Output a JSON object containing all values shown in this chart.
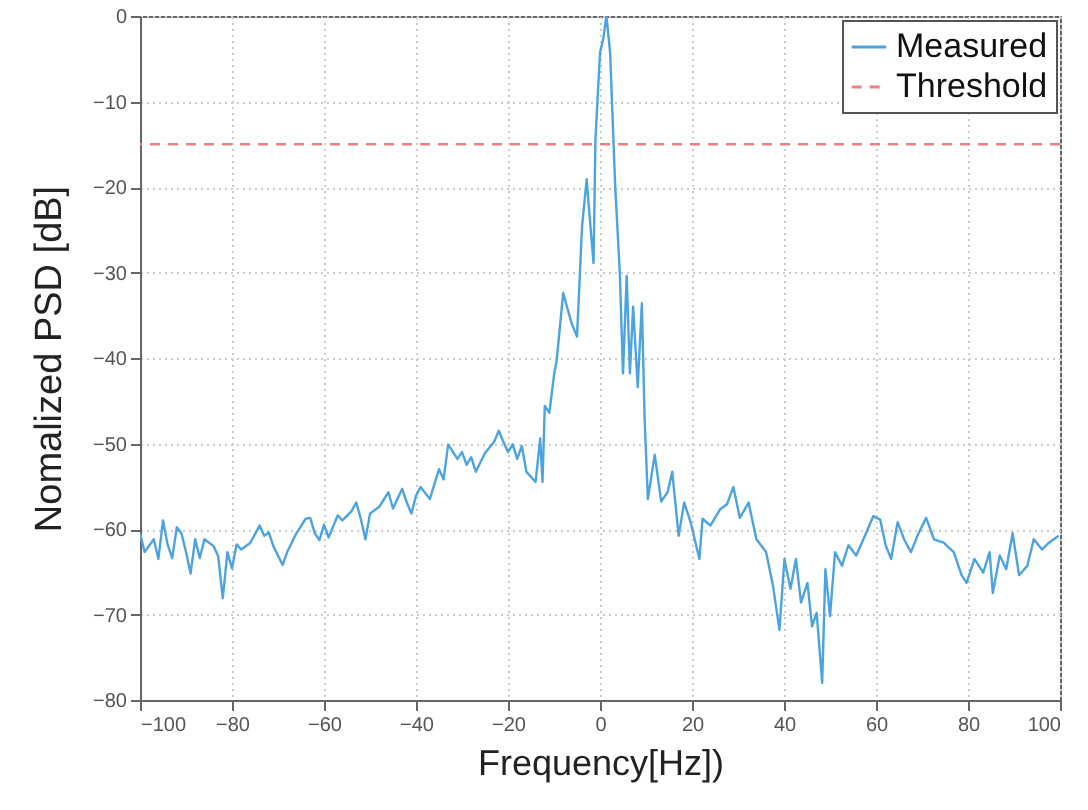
{
  "chart_data": {
    "type": "line",
    "xlabel": "Frequency[Hz])",
    "ylabel": "Nomalized PSD [dB]",
    "series": [
      {
        "name": "Measured",
        "color": "#4da3e0",
        "x": [
          -100,
          -99,
          -97,
          -96,
          -95,
          -94,
          -93,
          -92,
          -91,
          -90,
          -89,
          -88,
          -87,
          -86,
          -84,
          -83,
          -82,
          -81,
          -80,
          -79,
          -78,
          -76,
          -74,
          -73,
          -72,
          -71,
          -69,
          -68,
          -66,
          -64,
          -63,
          -62,
          -61,
          -60,
          -59,
          -57,
          -56,
          -54,
          -53,
          -52,
          -51,
          -50,
          -48,
          -46,
          -45,
          -43,
          -42,
          -41,
          -40,
          -39,
          -37,
          -35,
          -34,
          -33,
          -31,
          -30,
          -29,
          -28,
          -27,
          -25,
          -23,
          -22,
          -21,
          -20,
          -19,
          -18,
          -17,
          -16,
          -15,
          -14,
          -13,
          -12.5,
          -12,
          -11,
          -10,
          -9.4,
          -8,
          -6.2,
          -5,
          -3.9,
          -2.9,
          -2.2,
          -1.4,
          -1,
          0,
          0.7,
          1.4,
          2.2,
          3.3,
          4.3,
          5,
          5.8,
          6.5,
          7.2,
          8.2,
          9.1,
          9.7,
          10.4,
          11.9,
          13.3,
          14.7,
          15.7,
          17.1,
          18.3,
          19.7,
          21.6,
          22.3,
          24,
          26.1,
          27.6,
          29,
          30.4,
          32.3,
          34,
          36.1,
          37.6,
          39,
          40.1,
          41.4,
          42.6,
          43.7,
          45.1,
          46.1,
          47.1,
          48.3,
          49,
          50,
          51.1,
          52.6,
          54,
          55.7,
          57.6,
          59.4,
          60.9,
          62.1,
          63.3,
          64.7,
          66.1,
          67.6,
          69,
          70.9,
          72.6,
          74.7,
          76.9,
          78.6,
          79.7,
          81.4,
          83.3,
          84.7,
          85.4,
          86.9,
          88.3,
          89.7,
          91.1,
          92.9,
          94.3,
          96.1,
          97.6,
          99.7
        ],
        "values": [
          -60.5,
          -62.7,
          -61.2,
          -63.5,
          -59,
          -61.8,
          -63.4,
          -59.8,
          -60.5,
          -62.7,
          -65.2,
          -61.2,
          -63.4,
          -61.2,
          -62,
          -63.2,
          -68.1,
          -62.7,
          -64.6,
          -61.8,
          -62.4,
          -61.6,
          -59.6,
          -60.8,
          -60.4,
          -62,
          -64.2,
          -62.7,
          -60.5,
          -58.8,
          -58.7,
          -60.5,
          -61.3,
          -59.5,
          -61,
          -58.4,
          -59,
          -57.9,
          -56.9,
          -58.8,
          -61.2,
          -58.2,
          -57.4,
          -55.7,
          -57.6,
          -55.3,
          -56.9,
          -58.2,
          -56.1,
          -55.1,
          -56.5,
          -53,
          -54.2,
          -50.1,
          -51.8,
          -51,
          -52.5,
          -51.6,
          -53.3,
          -51.1,
          -49.8,
          -48.5,
          -49.8,
          -51,
          -50.1,
          -51.8,
          -50.3,
          -53.3,
          -53.9,
          -54.5,
          -49.4,
          -54.5,
          -45.6,
          -46.4,
          -42,
          -40.2,
          -32.4,
          -35.9,
          -37.5,
          -24.6,
          -19.1,
          -23.8,
          -28.9,
          -14.5,
          -4.3,
          -2.7,
          0,
          -4.3,
          -19.9,
          -30,
          -41.8,
          -30.4,
          -41.8,
          -34,
          -43.4,
          -33.6,
          -47.1,
          -56.5,
          -51.3,
          -56.8,
          -55.7,
          -53.3,
          -60.8,
          -56.9,
          -59.2,
          -63.5,
          -58.8,
          -59.6,
          -57.7,
          -57.1,
          -55.1,
          -58.7,
          -56.9,
          -61.2,
          -62.7,
          -66.6,
          -71.8,
          -63.5,
          -67,
          -63.5,
          -68.6,
          -66.3,
          -71.4,
          -69.8,
          -78,
          -64.7,
          -70.2,
          -62.7,
          -64.3,
          -61.9,
          -63.1,
          -60.8,
          -58.5,
          -58.9,
          -61.9,
          -63.5,
          -59.2,
          -61.2,
          -62.7,
          -60.8,
          -58.7,
          -61.2,
          -61.6,
          -62.7,
          -65.4,
          -66.3,
          -63.5,
          -65.1,
          -62.7,
          -67.5,
          -63.1,
          -64.7,
          -60.5,
          -65.4,
          -64.3,
          -61.2,
          -62.4,
          -61.6,
          -60.8
        ]
      }
    ],
    "ref_lines": [
      {
        "axis": "y",
        "value": -15,
        "label": "Threshold",
        "color": "#f08080",
        "line_style": "dashed"
      }
    ],
    "xlim": [
      -100,
      100
    ],
    "xticks": [
      -100,
      -80,
      -60,
      -40,
      -20,
      0,
      20,
      40,
      60,
      80,
      100
    ],
    "ylim": [
      -80,
      0
    ],
    "yticks": [
      -80,
      -70,
      -60,
      -50,
      -40,
      -30,
      -20,
      -10,
      0
    ],
    "grid": true,
    "legend": "top right",
    "line_style": "solid",
    "marker": "none"
  }
}
